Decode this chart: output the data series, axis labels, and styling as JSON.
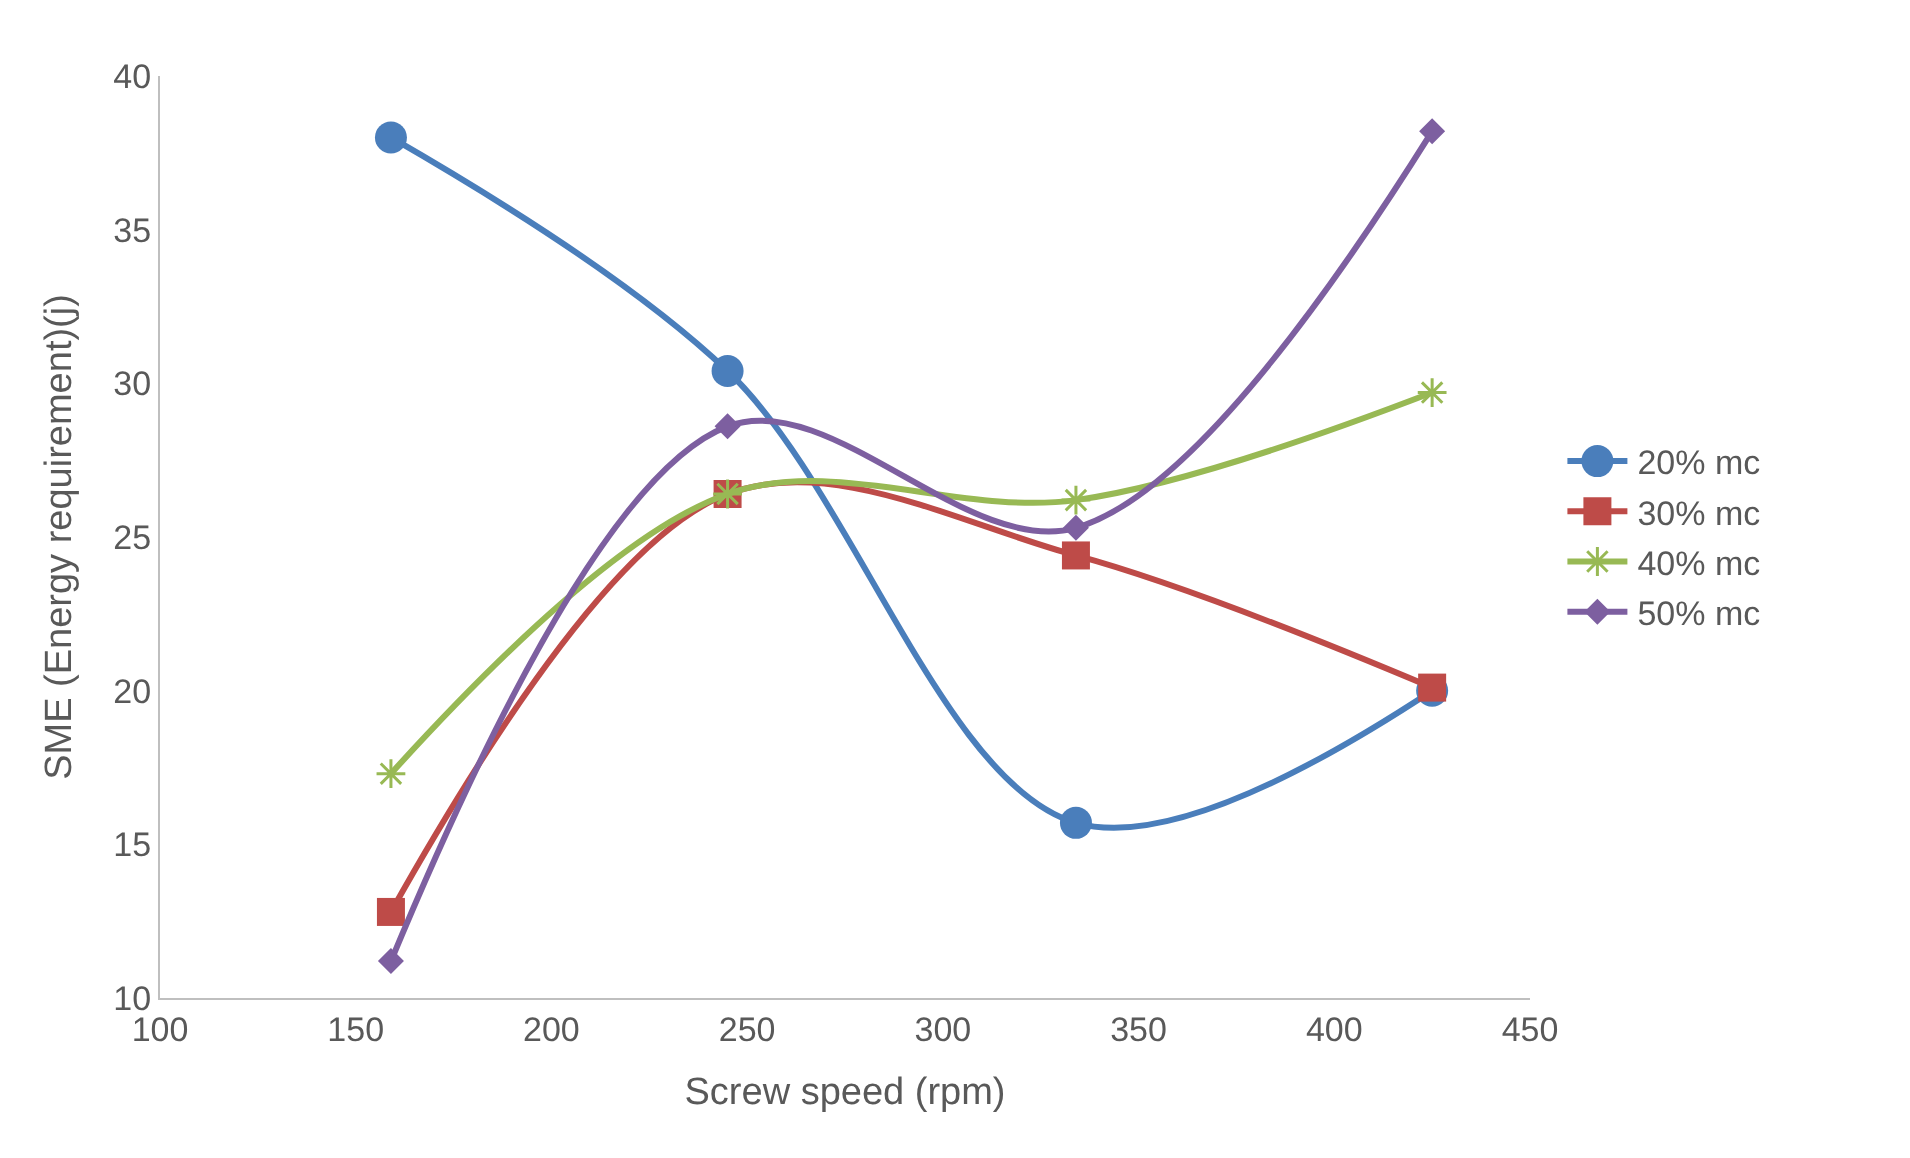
{
  "chart_data": {
    "type": "line",
    "xlabel": "Screw speed (rpm)",
    "ylabel": "SME (Energy requirement)(j)",
    "x": [
      159,
      245,
      334,
      425
    ],
    "series": [
      {
        "name": "20% mc",
        "color": "#4a7ebb",
        "marker": "circle",
        "values": [
          38.0,
          30.4,
          15.7,
          20.0
        ]
      },
      {
        "name": "30% mc",
        "color": "#be4b48",
        "marker": "square",
        "values": [
          12.8,
          26.4,
          24.4,
          20.1
        ]
      },
      {
        "name": "40% mc",
        "color": "#98b954",
        "marker": "cross",
        "values": [
          17.3,
          26.4,
          26.2,
          29.7
        ]
      },
      {
        "name": "50% mc",
        "color": "#7d5fa0",
        "marker": "diamond",
        "values": [
          11.2,
          28.6,
          25.3,
          38.2
        ]
      }
    ],
    "xlim": [
      100,
      450
    ],
    "xticks": [
      100,
      150,
      200,
      250,
      300,
      350,
      400,
      450
    ],
    "ylim": [
      10,
      40
    ],
    "yticks": [
      10,
      15,
      20,
      25,
      30,
      35,
      40
    ],
    "grid": false,
    "legend": "right",
    "line_style": "solid"
  }
}
